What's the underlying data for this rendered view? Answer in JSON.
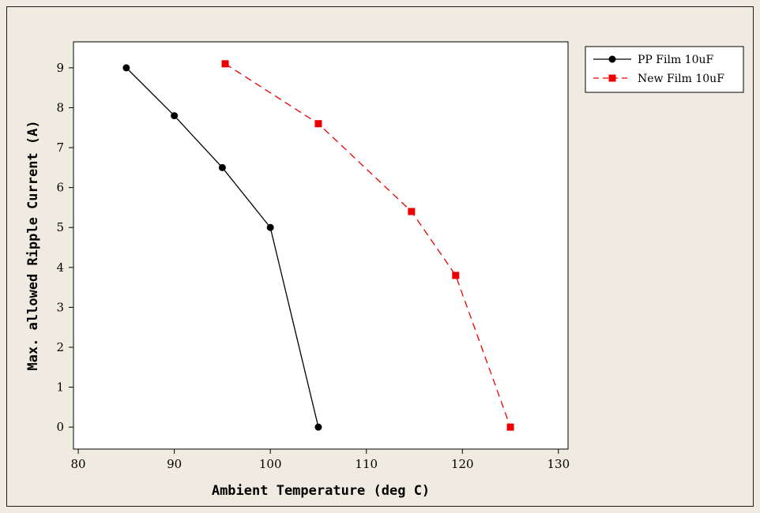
{
  "chart_data": {
    "type": "line",
    "title": "",
    "xlabel": "Ambient Temperature (deg C)",
    "ylabel": "Max. allowed Ripple Current (A)",
    "xlim": [
      79.5,
      131
    ],
    "ylim": [
      -0.55,
      9.65
    ],
    "xticks": [
      80,
      90,
      100,
      110,
      120,
      130
    ],
    "yticks": [
      0,
      1,
      2,
      3,
      4,
      5,
      6,
      7,
      8,
      9
    ],
    "grid": false,
    "legend_position": "top-right-outside",
    "series": [
      {
        "name": "PP Film 10uF",
        "color": "#000000",
        "marker": "circle",
        "line_style": "solid",
        "x": [
          85,
          90,
          95,
          100,
          105
        ],
        "y": [
          9.0,
          7.8,
          6.5,
          5.0,
          0.0
        ]
      },
      {
        "name": "New Film 10uF",
        "color": "#ee0000",
        "marker": "square",
        "line_style": "dashed",
        "x": [
          95.3,
          105,
          114.7,
          119.3,
          125
        ],
        "y": [
          9.1,
          7.6,
          5.4,
          3.8,
          0.0
        ]
      }
    ]
  }
}
